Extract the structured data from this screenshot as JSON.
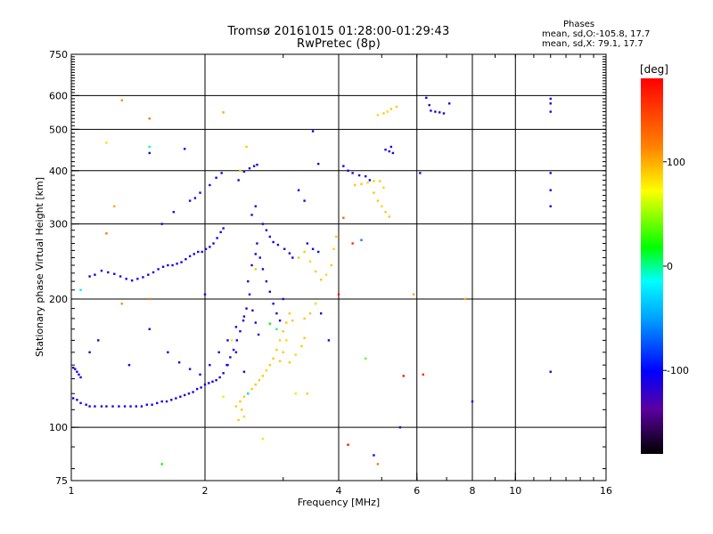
{
  "header": {
    "title": "Tromsø 20161015 01:28:00-01:29:43",
    "subtitle": "RwPretec (8p)"
  },
  "stats": {
    "title": "Phases",
    "o_label": "mean, sd,O:",
    "o_value": "-105.8, 17.7",
    "x_label": "mean, sd,X:",
    "x_value": " 79.1, 17.7"
  },
  "colorbar": {
    "label": "[deg]",
    "min": -180,
    "max": 180,
    "ticks": [
      {
        "value": 100,
        "label": "100"
      },
      {
        "value": 0,
        "label": "0"
      },
      {
        "value": -100,
        "label": "-100"
      }
    ]
  },
  "chart_data": {
    "type": "scatter",
    "title": "Tromsø 20161015 01:28:00-01:29:43",
    "subtitle": "RwPretec (8p)",
    "xlabel": "Frequency [MHz]",
    "ylabel": "Stationary phase Virtual Height [km]",
    "xscale": "log",
    "yscale": "log",
    "xlim": [
      1,
      16
    ],
    "ylim": [
      75,
      750
    ],
    "xticks": [
      {
        "value": 1,
        "label": "1"
      },
      {
        "value": 2,
        "label": "2"
      },
      {
        "value": 4,
        "label": "4"
      },
      {
        "value": 6,
        "label": "6"
      },
      {
        "value": 8,
        "label": "8"
      },
      {
        "value": 10,
        "label": "10"
      },
      {
        "value": 16,
        "label": "16"
      }
    ],
    "yticks": [
      {
        "value": 75,
        "label": "75"
      },
      {
        "value": 100,
        "label": "100"
      },
      {
        "value": 200,
        "label": "200"
      },
      {
        "value": 300,
        "label": "300"
      },
      {
        "value": 400,
        "label": "400"
      },
      {
        "value": 500,
        "label": "500"
      },
      {
        "value": 600,
        "label": "600"
      },
      {
        "value": 750,
        "label": "750"
      }
    ],
    "vgrid": [
      2,
      4,
      6,
      8,
      10
    ],
    "hgrid": [
      100,
      200,
      300,
      400,
      500,
      600
    ],
    "grid": true,
    "color_scale": "phase [deg], -180 (black) to 180 (red)",
    "points": [
      [
        1.01,
        138,
        -110
      ],
      [
        1.02,
        137,
        -110
      ],
      [
        1.03,
        135,
        -110
      ],
      [
        1.04,
        133,
        -110
      ],
      [
        1.05,
        131,
        -110
      ],
      [
        1.01,
        117,
        -110
      ],
      [
        1.03,
        116,
        -110
      ],
      [
        1.05,
        114,
        -110
      ],
      [
        1.08,
        113,
        -110
      ],
      [
        1.1,
        112,
        -110
      ],
      [
        1.13,
        112,
        -110
      ],
      [
        1.17,
        112,
        -110
      ],
      [
        1.2,
        112,
        -110
      ],
      [
        1.24,
        112,
        -115
      ],
      [
        1.28,
        112,
        -110
      ],
      [
        1.32,
        112,
        -110
      ],
      [
        1.36,
        112,
        -115
      ],
      [
        1.4,
        112,
        -110
      ],
      [
        1.44,
        112,
        -110
      ],
      [
        1.48,
        113,
        -110
      ],
      [
        1.52,
        113,
        -115
      ],
      [
        1.56,
        114,
        -110
      ],
      [
        1.6,
        115,
        -110
      ],
      [
        1.64,
        115,
        -110
      ],
      [
        1.68,
        116,
        -110
      ],
      [
        1.72,
        117,
        -115
      ],
      [
        1.76,
        118,
        -110
      ],
      [
        1.8,
        119,
        -110
      ],
      [
        1.84,
        120,
        -110
      ],
      [
        1.88,
        121,
        -110
      ],
      [
        1.92,
        123,
        -110
      ],
      [
        1.96,
        124,
        -115
      ],
      [
        2.0,
        126,
        -110
      ],
      [
        2.04,
        127,
        -110
      ],
      [
        2.08,
        128,
        -110
      ],
      [
        2.12,
        129,
        -115
      ],
      [
        2.16,
        131,
        -110
      ],
      [
        2.2,
        134,
        -110
      ],
      [
        2.24,
        140,
        -110
      ],
      [
        2.28,
        146,
        -115
      ],
      [
        2.32,
        152,
        -110
      ],
      [
        2.36,
        160,
        -110
      ],
      [
        2.4,
        168,
        -110
      ],
      [
        2.44,
        178,
        -110
      ],
      [
        2.48,
        190,
        -110
      ],
      [
        2.52,
        205,
        -110
      ],
      [
        2.56,
        188,
        -110
      ],
      [
        2.6,
        176,
        -110
      ],
      [
        2.64,
        165,
        -115
      ],
      [
        2.5,
        220,
        -110
      ],
      [
        2.55,
        240,
        -110
      ],
      [
        2.6,
        255,
        -110
      ],
      [
        2.62,
        270,
        -110
      ],
      [
        2.66,
        250,
        -110
      ],
      [
        2.7,
        235,
        -110
      ],
      [
        2.75,
        220,
        -110
      ],
      [
        2.8,
        208,
        -110
      ],
      [
        2.85,
        195,
        -110
      ],
      [
        2.9,
        185,
        -115
      ],
      [
        2.95,
        178,
        -110
      ],
      [
        1.65,
        150,
        -110
      ],
      [
        1.75,
        142,
        -110
      ],
      [
        1.85,
        137,
        -115
      ],
      [
        1.95,
        133,
        -110
      ],
      [
        2.05,
        140,
        -110
      ],
      [
        2.15,
        150,
        -110
      ],
      [
        2.25,
        160,
        -110
      ],
      [
        2.35,
        172,
        -110
      ],
      [
        2.45,
        182,
        -115
      ],
      [
        1.1,
        226,
        -110
      ],
      [
        1.13,
        228,
        -110
      ],
      [
        1.17,
        233,
        -110
      ],
      [
        1.21,
        231,
        -115
      ],
      [
        1.25,
        229,
        -110
      ],
      [
        1.29,
        226,
        -110
      ],
      [
        1.33,
        223,
        -110
      ],
      [
        1.37,
        221,
        -110
      ],
      [
        1.41,
        223,
        -115
      ],
      [
        1.45,
        225,
        -110
      ],
      [
        1.49,
        228,
        -110
      ],
      [
        1.53,
        231,
        -110
      ],
      [
        1.57,
        235,
        -110
      ],
      [
        1.61,
        238,
        -110
      ],
      [
        1.65,
        240,
        -115
      ],
      [
        1.69,
        240,
        -110
      ],
      [
        1.73,
        242,
        -110
      ],
      [
        1.77,
        244,
        -110
      ],
      [
        1.81,
        248,
        -110
      ],
      [
        1.85,
        252,
        -115
      ],
      [
        1.89,
        255,
        -110
      ],
      [
        1.93,
        258,
        -110
      ],
      [
        1.97,
        258,
        -110
      ],
      [
        2.01,
        262,
        -110
      ],
      [
        2.05,
        265,
        -115
      ],
      [
        2.09,
        270,
        -110
      ],
      [
        2.13,
        278,
        -110
      ],
      [
        2.17,
        287,
        -110
      ],
      [
        2.2,
        293,
        -115
      ],
      [
        2.38,
        380,
        -110
      ],
      [
        2.45,
        398,
        -115
      ],
      [
        2.52,
        405,
        -110
      ],
      [
        2.58,
        410,
        -110
      ],
      [
        2.62,
        413,
        -110
      ],
      [
        2.7,
        300,
        -110
      ],
      [
        2.75,
        290,
        -115
      ],
      [
        2.8,
        280,
        -110
      ],
      [
        2.85,
        272,
        -110
      ],
      [
        2.92,
        268,
        -110
      ],
      [
        3.02,
        262,
        -110
      ],
      [
        3.1,
        256,
        -115
      ],
      [
        3.15,
        250,
        -110
      ],
      [
        3.25,
        360,
        -110
      ],
      [
        3.35,
        340,
        -110
      ],
      [
        3.5,
        262,
        -110
      ],
      [
        3.6,
        258,
        -115
      ],
      [
        3.4,
        270,
        -110
      ],
      [
        2.6,
        330,
        -110
      ],
      [
        2.55,
        315,
        -110
      ],
      [
        1.9,
        345,
        -110
      ],
      [
        1.85,
        340,
        -110
      ],
      [
        1.95,
        355,
        -115
      ],
      [
        2.05,
        370,
        -110
      ],
      [
        2.12,
        385,
        -110
      ],
      [
        2.18,
        395,
        -110
      ],
      [
        1.7,
        320,
        -110
      ],
      [
        1.6,
        300,
        -115
      ],
      [
        2.35,
        112,
        90
      ],
      [
        2.4,
        115,
        90
      ],
      [
        2.45,
        118,
        90
      ],
      [
        2.5,
        120,
        85
      ],
      [
        2.55,
        123,
        90
      ],
      [
        2.6,
        126,
        90
      ],
      [
        2.65,
        129,
        90
      ],
      [
        2.7,
        132,
        90
      ],
      [
        2.75,
        136,
        85
      ],
      [
        2.8,
        140,
        90
      ],
      [
        2.85,
        145,
        90
      ],
      [
        2.9,
        152,
        90
      ],
      [
        2.95,
        160,
        85
      ],
      [
        3.0,
        168,
        90
      ],
      [
        3.05,
        176,
        90
      ],
      [
        3.1,
        185,
        90
      ],
      [
        3.15,
        178,
        90
      ],
      [
        3.05,
        160,
        85
      ],
      [
        3.0,
        150,
        90
      ],
      [
        2.95,
        143,
        90
      ],
      [
        3.1,
        142,
        90
      ],
      [
        3.2,
        148,
        85
      ],
      [
        3.3,
        155,
        90
      ],
      [
        3.35,
        162,
        90
      ],
      [
        2.38,
        104,
        90
      ],
      [
        2.45,
        106,
        85
      ],
      [
        2.42,
        110,
        90
      ],
      [
        3.25,
        250,
        90
      ],
      [
        3.35,
        258,
        90
      ],
      [
        3.45,
        245,
        85
      ],
      [
        3.55,
        232,
        90
      ],
      [
        3.65,
        222,
        90
      ],
      [
        3.75,
        228,
        85
      ],
      [
        3.85,
        240,
        90
      ],
      [
        3.95,
        280,
        90
      ],
      [
        3.9,
        262,
        85
      ],
      [
        2.6,
        235,
        90
      ],
      [
        2.48,
        455,
        90
      ],
      [
        3.55,
        195,
        85
      ],
      [
        3.45,
        185,
        90
      ],
      [
        3.35,
        180,
        90
      ],
      [
        4.1,
        410,
        -110
      ],
      [
        4.2,
        400,
        -110
      ],
      [
        4.3,
        395,
        -115
      ],
      [
        4.45,
        390,
        -110
      ],
      [
        4.6,
        388,
        -110
      ],
      [
        4.7,
        380,
        -110
      ],
      [
        5.1,
        448,
        -110
      ],
      [
        5.2,
        444,
        -110
      ],
      [
        5.3,
        440,
        -115
      ],
      [
        5.25,
        455,
        -110
      ],
      [
        4.35,
        370,
        90
      ],
      [
        4.5,
        372,
        90
      ],
      [
        4.65,
        375,
        85
      ],
      [
        4.8,
        378,
        90
      ],
      [
        4.95,
        378,
        90
      ],
      [
        5.05,
        365,
        85
      ],
      [
        4.8,
        355,
        90
      ],
      [
        4.9,
        340,
        90
      ],
      [
        5.0,
        330,
        85
      ],
      [
        5.1,
        320,
        90
      ],
      [
        5.2,
        312,
        90
      ],
      [
        5.05,
        545,
        90
      ],
      [
        5.15,
        550,
        85
      ],
      [
        5.25,
        558,
        90
      ],
      [
        5.4,
        565,
        90
      ],
      [
        4.9,
        540,
        85
      ],
      [
        6.45,
        553,
        -110
      ],
      [
        6.6,
        550,
        -110
      ],
      [
        6.75,
        548,
        -115
      ],
      [
        6.9,
        545,
        -110
      ],
      [
        6.4,
        570,
        -110
      ],
      [
        7.1,
        575,
        -110
      ],
      [
        6.3,
        593,
        -110
      ],
      [
        12.0,
        590,
        -110
      ],
      [
        12.0,
        575,
        -110
      ],
      [
        12.0,
        550,
        -110
      ],
      [
        12.0,
        395,
        -110
      ],
      [
        12.0,
        360,
        -110
      ],
      [
        12.0,
        330,
        -110
      ],
      [
        12.0,
        135,
        -110
      ],
      [
        1.8,
        450,
        -110
      ],
      [
        1.5,
        440,
        -110
      ],
      [
        1.5,
        455,
        0
      ],
      [
        1.2,
        465,
        80
      ],
      [
        1.3,
        585,
        110
      ],
      [
        1.5,
        530,
        120
      ],
      [
        2.2,
        548,
        100
      ],
      [
        2.4,
        400,
        90
      ],
      [
        1.25,
        330,
        100
      ],
      [
        1.2,
        285,
        120
      ],
      [
        1.3,
        195,
        110
      ],
      [
        1.05,
        210,
        -20
      ],
      [
        1.1,
        150,
        -110
      ],
      [
        1.15,
        160,
        -110
      ],
      [
        1.35,
        140,
        -110
      ],
      [
        1.5,
        200,
        120
      ],
      [
        1.5,
        170,
        -110
      ],
      [
        2.0,
        205,
        -110
      ],
      [
        2.3,
        160,
        60
      ],
      [
        2.2,
        118,
        60
      ],
      [
        2.5,
        120,
        -30
      ],
      [
        2.7,
        94,
        60
      ],
      [
        4.1,
        310,
        130
      ],
      [
        4.3,
        270,
        160
      ],
      [
        4.5,
        275,
        -60
      ],
      [
        4.6,
        145,
        40
      ],
      [
        4.2,
        91,
        170
      ],
      [
        4.8,
        86,
        -100
      ],
      [
        4.9,
        82,
        120
      ],
      [
        5.5,
        100,
        -110
      ],
      [
        5.9,
        205,
        100
      ],
      [
        6.1,
        395,
        -110
      ],
      [
        6.2,
        133,
        160
      ],
      [
        5.6,
        132,
        170
      ],
      [
        7.7,
        200,
        100
      ],
      [
        8.0,
        115,
        -110
      ],
      [
        1.6,
        82,
        20
      ],
      [
        3.5,
        495,
        -110
      ],
      [
        3.6,
        415,
        -110
      ],
      [
        3.8,
        160,
        -110
      ],
      [
        4.0,
        205,
        170
      ],
      [
        3.4,
        120,
        90
      ],
      [
        3.2,
        120,
        60
      ],
      [
        2.8,
        175,
        20
      ],
      [
        2.9,
        170,
        0
      ],
      [
        3.0,
        200,
        -110
      ],
      [
        3.65,
        185,
        -110
      ],
      [
        2.25,
        140,
        -110
      ],
      [
        2.35,
        150,
        -110
      ],
      [
        2.45,
        135,
        -110
      ]
    ]
  }
}
